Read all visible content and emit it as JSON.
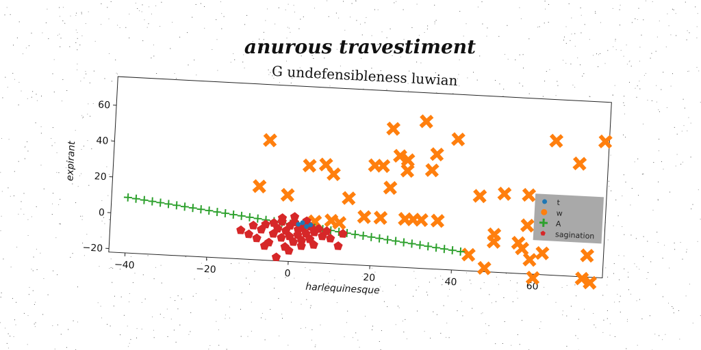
{
  "figure": {
    "super_title": "anurous travestiment"
  },
  "chart_data": {
    "type": "scatter",
    "title": "G undefensibleness luwian",
    "xlabel": "harlequinesque",
    "ylabel": "expirant",
    "xlim": [
      -44,
      77
    ],
    "ylim": [
      -22,
      76
    ],
    "xticks": [
      -40,
      -20,
      0,
      20,
      40,
      60
    ],
    "yticks": [
      -20,
      0,
      20,
      40,
      60
    ],
    "grid": false,
    "legend_position": "right",
    "series": [
      {
        "name": "t",
        "marker": "circle",
        "color": "#1f77b4",
        "points": [
          [
            2,
            -1
          ],
          [
            3,
            0
          ],
          [
            4,
            -2
          ],
          [
            5,
            -1
          ]
        ]
      },
      {
        "name": "w",
        "marker": "x-thick",
        "color": "#ff7f0e",
        "points": [
          [
            -6,
            45
          ],
          [
            -8,
            19
          ],
          [
            -1,
            15
          ],
          [
            4,
            32
          ],
          [
            8,
            33
          ],
          [
            10,
            28
          ],
          [
            14,
            15
          ],
          [
            18,
            5
          ],
          [
            20,
            34
          ],
          [
            22,
            34
          ],
          [
            22,
            5
          ],
          [
            24,
            22
          ],
          [
            24,
            55
          ],
          [
            26,
            40
          ],
          [
            28,
            38
          ],
          [
            28,
            32
          ],
          [
            28,
            5
          ],
          [
            30,
            5
          ],
          [
            32,
            5
          ],
          [
            32,
            60
          ],
          [
            34,
            33
          ],
          [
            35,
            42
          ],
          [
            36,
            5
          ],
          [
            40,
            51
          ],
          [
            6,
            1
          ],
          [
            10,
            2
          ],
          [
            12,
            1
          ],
          [
            44,
            -13
          ],
          [
            46,
            20
          ],
          [
            48,
            -20
          ],
          [
            50,
            -5
          ],
          [
            50,
            -1
          ],
          [
            52,
            22
          ],
          [
            56,
            -5
          ],
          [
            57,
            -8
          ],
          [
            58,
            22
          ],
          [
            58,
            5
          ],
          [
            59,
            -14
          ],
          [
            60,
            -24
          ],
          [
            62,
            -10
          ],
          [
            64,
            53
          ],
          [
            70,
            41
          ],
          [
            72,
            -23
          ],
          [
            73,
            -10
          ],
          [
            74,
            -25
          ],
          [
            76,
            54
          ]
        ]
      },
      {
        "name": "A",
        "marker": "plus",
        "color": "#2ca02c",
        "points": [
          [
            -40,
            9
          ],
          [
            -38,
            8.5
          ],
          [
            -36,
            8
          ],
          [
            -34,
            7.5
          ],
          [
            -32,
            7
          ],
          [
            -30,
            6.5
          ],
          [
            -28,
            6
          ],
          [
            -26,
            5.5
          ],
          [
            -24,
            5
          ],
          [
            -22,
            4.5
          ],
          [
            -20,
            4
          ],
          [
            -18,
            3.5
          ],
          [
            -16,
            3
          ],
          [
            -14,
            2.5
          ],
          [
            -12,
            2
          ],
          [
            -10,
            1.5
          ],
          [
            -8,
            1
          ],
          [
            -6,
            0.5
          ],
          [
            -4,
            0
          ],
          [
            -2,
            -0.5
          ],
          [
            0,
            -1
          ],
          [
            2,
            -1.5
          ],
          [
            4,
            -2
          ],
          [
            6,
            -2.5
          ],
          [
            8,
            -3
          ],
          [
            10,
            -3.5
          ],
          [
            12,
            -4
          ],
          [
            14,
            -4.5
          ],
          [
            16,
            -5
          ],
          [
            18,
            -5.5
          ],
          [
            20,
            -6
          ],
          [
            22,
            -6.5
          ],
          [
            24,
            -7
          ],
          [
            26,
            -7.5
          ],
          [
            28,
            -8
          ],
          [
            30,
            -8.5
          ],
          [
            32,
            -9
          ],
          [
            34,
            -9.5
          ],
          [
            36,
            -10
          ],
          [
            38,
            -10.5
          ],
          [
            40,
            -11
          ],
          [
            42,
            -11.5
          ]
        ]
      },
      {
        "name": "sagination",
        "marker": "pentagon",
        "color": "#d62728",
        "points": [
          [
            -12,
            -6
          ],
          [
            -10,
            -8
          ],
          [
            -9,
            -3
          ],
          [
            -8,
            -10
          ],
          [
            -7,
            -5
          ],
          [
            -6,
            -2
          ],
          [
            -5,
            -12
          ],
          [
            -4,
            -7
          ],
          [
            -4,
            -1
          ],
          [
            -3,
            -4
          ],
          [
            -2,
            -9
          ],
          [
            -2,
            0
          ],
          [
            -1,
            -5
          ],
          [
            -1,
            -14
          ],
          [
            0,
            -2
          ],
          [
            0,
            -8
          ],
          [
            1,
            -11
          ],
          [
            1,
            0
          ],
          [
            2,
            -4
          ],
          [
            2,
            -7
          ],
          [
            3,
            -3
          ],
          [
            3,
            -10
          ],
          [
            4,
            -6
          ],
          [
            4,
            1
          ],
          [
            5,
            -2
          ],
          [
            5,
            -9
          ],
          [
            6,
            -5
          ],
          [
            6,
            -12
          ],
          [
            7,
            -3
          ],
          [
            8,
            -7
          ],
          [
            9,
            -4
          ],
          [
            10,
            -8
          ],
          [
            12,
            -12
          ],
          [
            13,
            -5
          ],
          [
            -3,
            -20
          ],
          [
            -6,
            -14
          ],
          [
            0,
            -16
          ],
          [
            -2,
            2
          ],
          [
            1,
            3
          ],
          [
            3,
            -13
          ]
        ]
      }
    ]
  }
}
